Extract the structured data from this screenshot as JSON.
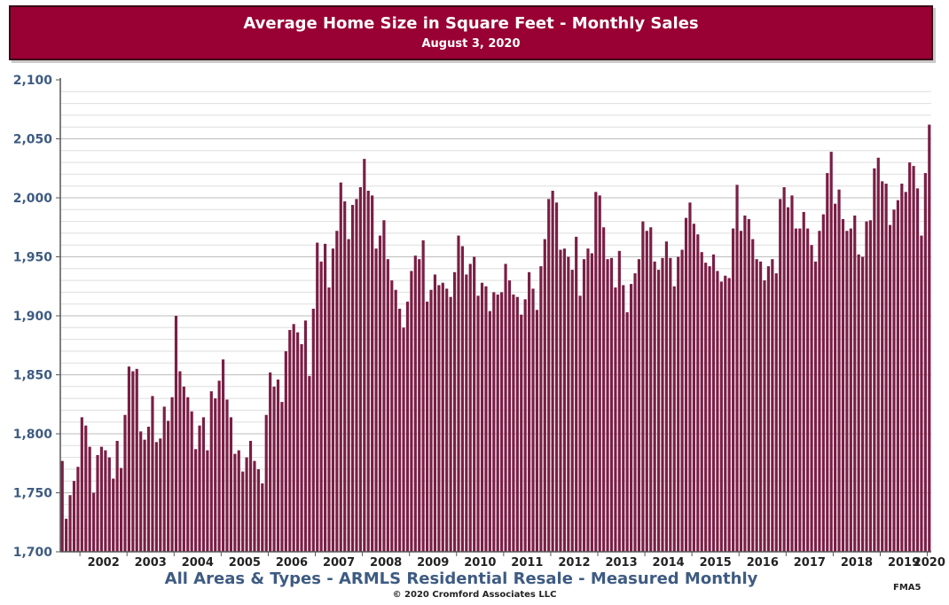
{
  "chart_data": {
    "type": "bar",
    "title": "Average Home Size in Square Feet - Monthly Sales",
    "subtitle": "August 3, 2020",
    "xlabel": "All Areas & Types - ARMLS Residential Resale - Measured Monthly",
    "ylabel": "",
    "ylim": [
      1700,
      2100
    ],
    "yticks": [
      "1,700",
      "1,750",
      "1,800",
      "1,850",
      "1,900",
      "1,950",
      "2,000",
      "2,050",
      "2,100"
    ],
    "ytick_values": [
      1700,
      1750,
      1800,
      1850,
      1900,
      1950,
      2000,
      2050,
      2100
    ],
    "year_labels": [
      "2002",
      "2003",
      "2004",
      "2005",
      "2006",
      "2007",
      "2008",
      "2009",
      "2010",
      "2011",
      "2012",
      "2013",
      "2014",
      "2015",
      "2016",
      "2017",
      "2018",
      "2019",
      "2020"
    ],
    "start_month": "2001-08",
    "grid": true,
    "bar_color": "#7a1e45",
    "values": [
      1777,
      1728,
      1748,
      1760,
      1772,
      1814,
      1807,
      1789,
      1750,
      1782,
      1789,
      1786,
      1780,
      1762,
      1794,
      1771,
      1816,
      1857,
      1853,
      1855,
      1802,
      1795,
      1806,
      1832,
      1793,
      1796,
      1823,
      1811,
      1831,
      1900,
      1853,
      1840,
      1831,
      1819,
      1787,
      1807,
      1814,
      1786,
      1836,
      1830,
      1845,
      1863,
      1829,
      1814,
      1783,
      1786,
      1768,
      1780,
      1794,
      1777,
      1770,
      1758,
      1816,
      1852,
      1840,
      1846,
      1827,
      1870,
      1888,
      1893,
      1886,
      1876,
      1896,
      1849,
      1906,
      1962,
      1946,
      1961,
      1924,
      1957,
      1972,
      2013,
      1997,
      1965,
      1994,
      1999,
      2009,
      2033,
      2006,
      2002,
      1957,
      1968,
      1981,
      1948,
      1930,
      1922,
      1906,
      1890,
      1912,
      1938,
      1951,
      1948,
      1964,
      1912,
      1922,
      1935,
      1926,
      1928,
      1923,
      1916,
      1937,
      1968,
      1959,
      1935,
      1944,
      1950,
      1917,
      1928,
      1925,
      1904,
      1920,
      1918,
      1920,
      1944,
      1930,
      1918,
      1916,
      1901,
      1914,
      1937,
      1923,
      1905,
      1942,
      1965,
      1999,
      2006,
      1996,
      1956,
      1957,
      1950,
      1939,
      1967,
      1917,
      1948,
      1957,
      1953,
      2005,
      2002,
      1975,
      1948,
      1949,
      1924,
      1955,
      1926,
      1903,
      1927,
      1936,
      1948,
      1980,
      1972,
      1975,
      1946,
      1939,
      1949,
      1963,
      1949,
      1925,
      1950,
      1956,
      1983,
      1996,
      1978,
      1969,
      1954,
      1945,
      1942,
      1952,
      1938,
      1929,
      1934,
      1932,
      1974,
      2011,
      1972,
      1985,
      1982,
      1965,
      1948,
      1946,
      1930,
      1942,
      1948,
      1936,
      1999,
      2009,
      1992,
      2002,
      1974,
      1974,
      1988,
      1974,
      1960,
      1946,
      1972,
      1986,
      2021,
      2039,
      1995,
      2007,
      1982,
      1972,
      1974,
      1985,
      1952,
      1950,
      1980,
      1981,
      2025,
      2034,
      2014,
      2012,
      1977,
      1990,
      1998,
      2012,
      2005,
      2030,
      2027,
      2008,
      1968,
      2021,
      2062
    ]
  },
  "footer": {
    "main": "All Areas & Types - ARMLS Residential Resale - Measured Monthly",
    "copyright": "© 2020 Cromford Associates LLC",
    "code": "FMA5"
  }
}
